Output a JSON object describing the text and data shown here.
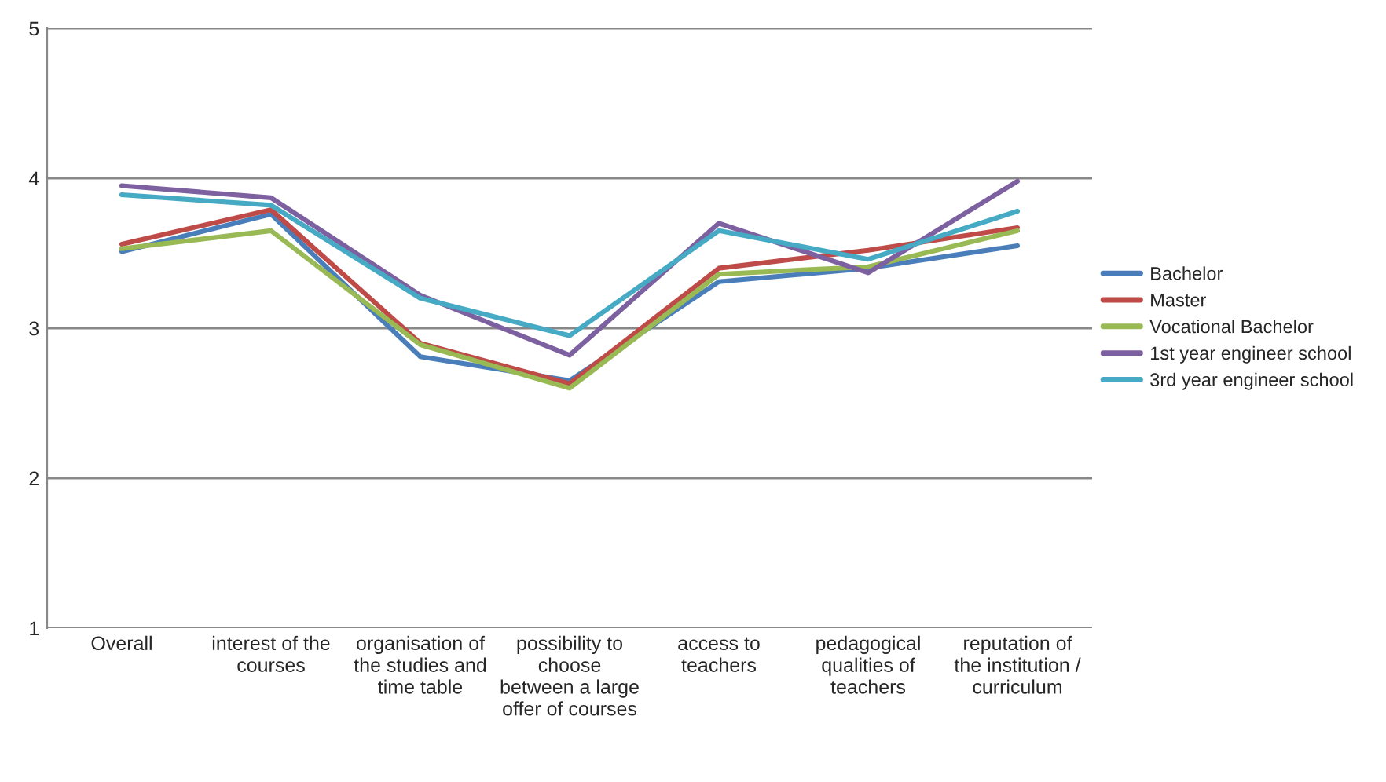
{
  "chart_data": {
    "type": "line",
    "categories": [
      "Overall",
      "interest of the courses",
      "organisation of the studies and time table",
      "possibility to choose between a large offer of courses",
      "access to teachers",
      "pedagogical qualities of teachers",
      "reputation of the institution / curriculum"
    ],
    "series": [
      {
        "name": "Bachelor",
        "color": "#4a7ebb",
        "values": [
          3.51,
          3.76,
          2.81,
          2.65,
          3.31,
          3.4,
          3.55
        ]
      },
      {
        "name": "Master",
        "color": "#be4b48",
        "values": [
          3.56,
          3.79,
          2.9,
          2.63,
          3.4,
          3.52,
          3.67
        ]
      },
      {
        "name": "Vocational Bachelor",
        "color": "#98b954",
        "values": [
          3.53,
          3.65,
          2.89,
          2.6,
          3.36,
          3.41,
          3.65
        ]
      },
      {
        "name": "1st year engineer school",
        "color": "#7d60a0",
        "values": [
          3.95,
          3.87,
          3.22,
          2.82,
          3.7,
          3.37,
          3.98
        ]
      },
      {
        "name": "3rd year engineer school",
        "color": "#46aac5",
        "values": [
          3.89,
          3.82,
          3.2,
          2.95,
          3.65,
          3.46,
          3.78
        ]
      }
    ],
    "ylim": [
      1,
      5
    ],
    "yticks": [
      1,
      2,
      3,
      4,
      5
    ],
    "grid": "y",
    "legend": "right",
    "marker": "none",
    "line_style": "solid"
  }
}
